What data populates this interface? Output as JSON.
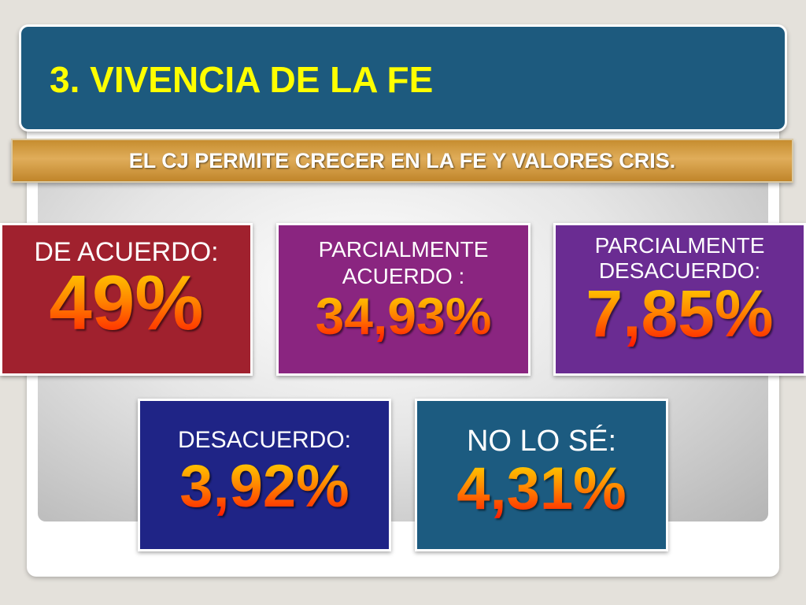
{
  "title": "3. VIVENCIA DE LA FE",
  "subtitle": "EL CJ PERMITE CRECER EN LA FE Y VALORES CRIS.",
  "cards": [
    {
      "label_lines": [
        "DE ACUERDO:"
      ],
      "value": "49%",
      "color": "#a0212e"
    },
    {
      "label_lines": [
        "PARCIALMENTE",
        "ACUERDO :"
      ],
      "value": "34,93%",
      "color": "#8a2580"
    },
    {
      "label_lines": [
        "PARCIALMENTE",
        "DESACUERDO:"
      ],
      "value": "7,85%",
      "color": "#6a2c92"
    },
    {
      "label_lines": [
        "DESACUERDO:"
      ],
      "value": "3,92%",
      "color": "#1f2486"
    },
    {
      "label_lines": [
        "NO LO SÉ:"
      ],
      "value": "4,31%",
      "color": "#1c5b80"
    }
  ],
  "colors": {
    "title_banner": "#1d5a7e",
    "title_text": "#ffff00",
    "subtitle_bar": "#d49b3e",
    "value_gradient": [
      "#ffd700",
      "#ff1a00"
    ]
  }
}
